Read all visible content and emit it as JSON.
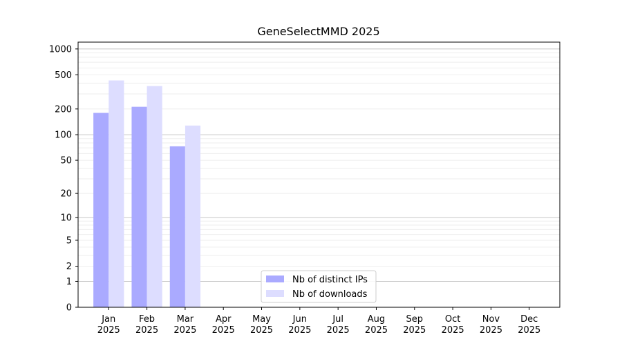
{
  "chart_data": {
    "type": "bar",
    "title": "GeneSelectMMD 2025",
    "xlabel": "",
    "ylabel": "",
    "y_scale": "log(1+y)",
    "ylim": [
      0,
      1200
    ],
    "y_ticks": [
      0,
      1,
      2,
      5,
      10,
      20,
      50,
      100,
      200,
      500,
      1000
    ],
    "categories": [
      "Jan\n2025",
      "Feb\n2025",
      "Mar\n2025",
      "Apr\n2025",
      "May\n2025",
      "Jun\n2025",
      "Jul\n2025",
      "Aug\n2025",
      "Sep\n2025",
      "Oct\n2025",
      "Nov\n2025",
      "Dec\n2025"
    ],
    "series": [
      {
        "name": "Nb of distinct IPs",
        "color": "#aaaaff",
        "values": [
          180,
          212,
          73,
          0,
          0,
          0,
          0,
          0,
          0,
          0,
          0,
          0
        ]
      },
      {
        "name": "Nb of downloads",
        "color": "#ddddff",
        "values": [
          430,
          370,
          128,
          0,
          0,
          0,
          0,
          0,
          0,
          0,
          0,
          0
        ]
      }
    ],
    "grid": true,
    "legend_position": "bottom-center"
  }
}
